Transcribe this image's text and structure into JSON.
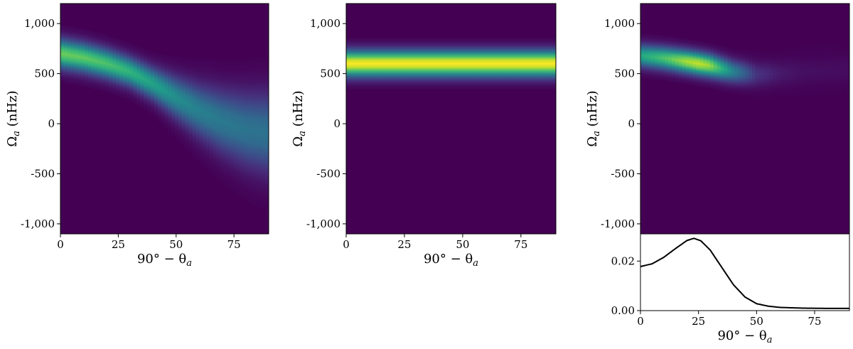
{
  "chart_data": [
    {
      "type": "heatmap",
      "title": "",
      "xlabel": "90° − θ",
      "xlabel_sub": "a",
      "ylabel": "Ω",
      "ylabel_sub": "a",
      "ylabel_unit": " (nHz)",
      "xlim": [
        0,
        90
      ],
      "ylim": [
        -1100,
        1200
      ],
      "xticks": [
        0,
        25,
        50,
        75
      ],
      "xtick_labels": [
        "0",
        "25",
        "50",
        "75"
      ],
      "yticks": [
        1000,
        500,
        0,
        -500,
        -1000
      ],
      "ytick_labels": [
        "1,000",
        "500",
        "0",
        "-500",
        "-1,000"
      ],
      "colormap": "viridis",
      "background_color": "#440154",
      "ridge": {
        "description_points_x": [
          0,
          10,
          20,
          30,
          40,
          50,
          60,
          70,
          80,
          90
        ],
        "center_y": [
          700,
          660,
          600,
          520,
          400,
          260,
          130,
          20,
          -60,
          -100
        ],
        "width_y": [
          95,
          95,
          95,
          95,
          105,
          135,
          170,
          205,
          235,
          260
        ],
        "peak_intensity": [
          0.78,
          0.76,
          0.72,
          0.66,
          0.58,
          0.5,
          0.44,
          0.41,
          0.39,
          0.38
        ]
      },
      "grid": false
    },
    {
      "type": "heatmap",
      "title": "",
      "xlabel": "90° − θ",
      "xlabel_sub": "a",
      "ylabel": "Ω",
      "ylabel_sub": "a",
      "ylabel_unit": " (nHz)",
      "xlim": [
        0,
        90
      ],
      "ylim": [
        -1100,
        1200
      ],
      "xticks": [
        0,
        25,
        50,
        75
      ],
      "xtick_labels": [
        "0",
        "25",
        "50",
        "75"
      ],
      "yticks": [
        1000,
        500,
        0,
        -500,
        -1000
      ],
      "ytick_labels": [
        "1,000",
        "500",
        "0",
        "-500",
        "-1,000"
      ],
      "colormap": "viridis",
      "background_color": "#440154",
      "band": {
        "center_y": 600,
        "width_y": 85,
        "peak_intensity": 1.0
      },
      "grid": false
    },
    {
      "type": "heatmap",
      "title": "",
      "xlabel": "",
      "ylabel": "Ω",
      "ylabel_sub": "a",
      "ylabel_unit": " (nHz)",
      "xlim": [
        0,
        90
      ],
      "ylim": [
        -1100,
        1200
      ],
      "xticks": [
        0,
        25,
        50,
        75
      ],
      "xtick_labels": [
        "",
        "",
        "",
        ""
      ],
      "yticks": [
        1000,
        500,
        0,
        -500,
        -1000
      ],
      "ytick_labels": [
        "1,000",
        "500",
        "0",
        "-500",
        "-1,000"
      ],
      "colormap": "viridis",
      "background_color": "#440154",
      "blob": {
        "description_points_x": [
          0,
          10,
          20,
          25,
          30,
          40,
          50,
          60,
          70,
          90
        ],
        "center_y": [
          680,
          655,
          620,
          600,
          580,
          520,
          490,
          500,
          520,
          540
        ],
        "width_y": [
          75,
          75,
          75,
          75,
          75,
          75,
          80,
          85,
          90,
          95
        ],
        "peak_intensity": [
          0.6,
          0.72,
          0.88,
          0.92,
          0.85,
          0.45,
          0.15,
          0.07,
          0.04,
          0.03
        ]
      },
      "grid": false
    },
    {
      "type": "line",
      "title": "",
      "xlabel": "90° − θ",
      "xlabel_sub": "a",
      "ylabel": "",
      "xlim": [
        0,
        90
      ],
      "ylim": [
        0,
        0.031
      ],
      "xticks": [
        0,
        25,
        50,
        75
      ],
      "xtick_labels": [
        "0",
        "25",
        "50",
        "75"
      ],
      "yticks": [
        0.0,
        0.02
      ],
      "ytick_labels": [
        "0.00",
        "0.02"
      ],
      "x": [
        0,
        5,
        10,
        15,
        20,
        23,
        26,
        30,
        35,
        40,
        45,
        50,
        55,
        60,
        70,
        80,
        90
      ],
      "y": [
        0.0178,
        0.0189,
        0.0215,
        0.025,
        0.0283,
        0.0292,
        0.0282,
        0.0245,
        0.0175,
        0.0105,
        0.0055,
        0.0028,
        0.0018,
        0.0013,
        0.001,
        0.0009,
        0.0009
      ],
      "line_color": "#000000",
      "grid": false
    }
  ]
}
